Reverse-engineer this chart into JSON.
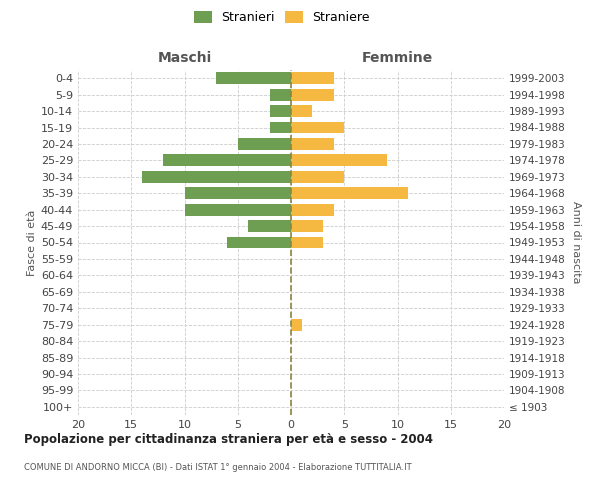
{
  "age_groups": [
    "100+",
    "95-99",
    "90-94",
    "85-89",
    "80-84",
    "75-79",
    "70-74",
    "65-69",
    "60-64",
    "55-59",
    "50-54",
    "45-49",
    "40-44",
    "35-39",
    "30-34",
    "25-29",
    "20-24",
    "15-19",
    "10-14",
    "5-9",
    "0-4"
  ],
  "birth_years": [
    "≤ 1903",
    "1904-1908",
    "1909-1913",
    "1914-1918",
    "1919-1923",
    "1924-1928",
    "1929-1933",
    "1934-1938",
    "1939-1943",
    "1944-1948",
    "1949-1953",
    "1954-1958",
    "1959-1963",
    "1964-1968",
    "1969-1973",
    "1974-1978",
    "1979-1983",
    "1984-1988",
    "1989-1993",
    "1994-1998",
    "1999-2003"
  ],
  "maschi": [
    0,
    0,
    0,
    0,
    0,
    0,
    0,
    0,
    0,
    0,
    6,
    4,
    10,
    10,
    14,
    12,
    5,
    2,
    2,
    2,
    7
  ],
  "femmine": [
    0,
    0,
    0,
    0,
    0,
    1,
    0,
    0,
    0,
    0,
    3,
    3,
    4,
    11,
    5,
    9,
    4,
    5,
    2,
    4,
    4
  ],
  "maschi_color": "#6d9e52",
  "femmine_color": "#f5b942",
  "center_line_color": "#888840",
  "grid_color": "#cccccc",
  "title": "Popolazione per cittadinanza straniera per età e sesso - 2004",
  "subtitle": "COMUNE DI ANDORNO MICCA (BI) - Dati ISTAT 1° gennaio 2004 - Elaborazione TUTTITALIA.IT",
  "left_header": "Maschi",
  "right_header": "Femmine",
  "ylabel_left": "Fasce di età",
  "ylabel_right": "Anni di nascita",
  "legend_maschi": "Stranieri",
  "legend_femmine": "Straniere",
  "xlim": 20,
  "background_color": "#ffffff"
}
